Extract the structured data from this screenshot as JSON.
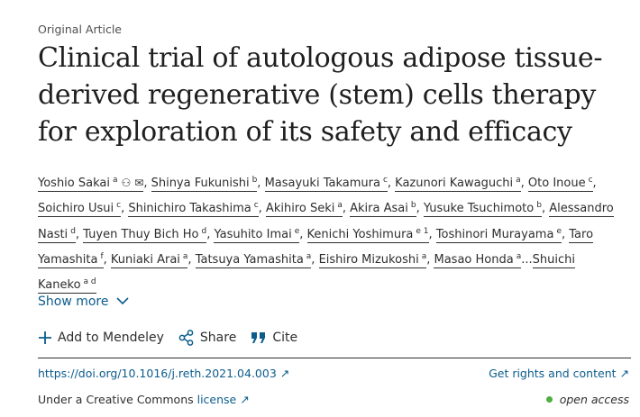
{
  "article_type": "Original Article",
  "title": "Clinical trial of autologous adipose tissue-derived regenerative (stem) cells therapy for exploration of its safety and efficacy",
  "authors": [
    {
      "name": "Yoshio Sakai",
      "aff": "a",
      "sep": ""
    },
    {
      "name": "Shinya Fukunishi",
      "aff": "b",
      "sep": ","
    },
    {
      "name": "Masayuki Takamura",
      "aff": "c",
      "sep": ","
    },
    {
      "name": "Kazunori Kawaguchi",
      "aff": "a",
      "sep": ","
    },
    {
      "name": "Oto Inoue",
      "aff": "c",
      "sep": ","
    },
    {
      "name": "Soichiro Usui",
      "aff": "c",
      "sep": ","
    },
    {
      "name": "Shinichiro Takashima",
      "aff": "c",
      "sep": ","
    },
    {
      "name": "Akihiro Seki",
      "aff": "a",
      "sep": ","
    },
    {
      "name": "Akira Asai",
      "aff": "b",
      "sep": ","
    },
    {
      "name": "Yusuke Tsuchimoto",
      "aff": "b",
      "sep": ","
    },
    {
      "name": "Alessandro Nasti",
      "aff": "d",
      "sep": ","
    },
    {
      "name": "Tuyen Thuy Bich Ho",
      "aff": "d",
      "sep": ","
    },
    {
      "name": "Yasuhito Imai",
      "aff": "e",
      "sep": ","
    },
    {
      "name": "Kenichi Yoshimura",
      "aff": "e 1",
      "sep": ","
    },
    {
      "name": "Toshinori Murayama",
      "aff": "e",
      "sep": ","
    },
    {
      "name": "Taro Yamashita",
      "aff": "f",
      "sep": ","
    },
    {
      "name": "Kuniaki Arai",
      "aff": "a",
      "sep": ","
    },
    {
      "name": "Tatsuya Yamashita",
      "aff": "a",
      "sep": ","
    },
    {
      "name": "Eishiro Mizukoshi",
      "aff": "a",
      "sep": ","
    },
    {
      "name": "Masao Honda",
      "aff": "a",
      "sep": ","
    },
    {
      "name": "Shuichi Kaneko",
      "aff": "a d",
      "sep": "..."
    }
  ],
  "first_author_icons": [
    "person-icon",
    "envelope-icon"
  ],
  "show_more": "Show more",
  "actions": {
    "mendeley": "Add to Mendeley",
    "share": "Share",
    "cite": "Cite"
  },
  "doi": "https://doi.org/10.1016/j.reth.2021.04.003",
  "rights": "Get rights and content",
  "license_prefix": "Under a Creative Commons ",
  "license_link": "license",
  "open_access": "open access",
  "colors": {
    "link": "#0c5c8c",
    "open_access_dot": "#4caf3e"
  }
}
